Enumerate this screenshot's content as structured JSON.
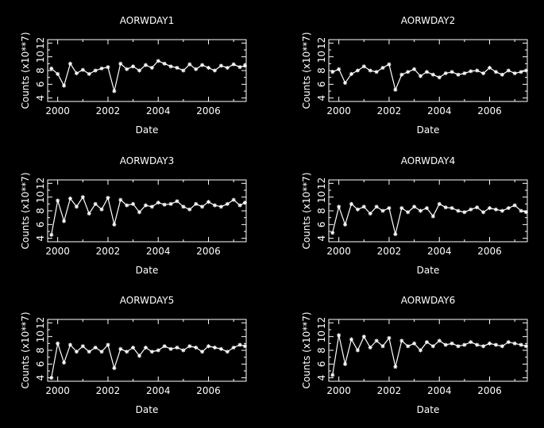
{
  "panels": [
    {
      "title": "AORWDAY1",
      "xlabel": "Date",
      "ylabel": "Counts (x10**7)",
      "xticks": [
        "2000",
        "2002",
        "2004",
        "2006"
      ],
      "yticks": [
        "4",
        "6",
        "8",
        "10",
        "12"
      ]
    },
    {
      "title": "AORWDAY2",
      "xlabel": "Date",
      "ylabel": "Counts (x10**7)",
      "xticks": [
        "2000",
        "2002",
        "2004",
        "2006"
      ],
      "yticks": [
        "4",
        "6",
        "8",
        "10",
        "12"
      ]
    },
    {
      "title": "AORWDAY3",
      "xlabel": "Date",
      "ylabel": "Counts (x10**7)",
      "xticks": [
        "2000",
        "2002",
        "2004",
        "2006"
      ],
      "yticks": [
        "4",
        "6",
        "8",
        "10",
        "12"
      ]
    },
    {
      "title": "AORWDAY4",
      "xlabel": "Date",
      "ylabel": "Counts (x10**7)",
      "xticks": [
        "2000",
        "2002",
        "2004",
        "2006"
      ],
      "yticks": [
        "4",
        "6",
        "8",
        "10",
        "12"
      ]
    },
    {
      "title": "AORWDAY5",
      "xlabel": "Date",
      "ylabel": "Counts (x10**7)",
      "xticks": [
        "2000",
        "2002",
        "2004",
        "2006"
      ],
      "yticks": [
        "4",
        "6",
        "8",
        "10",
        "12"
      ]
    },
    {
      "title": "AORWDAY6",
      "xlabel": "Date",
      "ylabel": "Counts (x10**7)",
      "xticks": [
        "2000",
        "2002",
        "2004",
        "2006"
      ],
      "yticks": [
        "4",
        "6",
        "8",
        "10",
        "12"
      ]
    }
  ],
  "colors": {
    "background": "#000000",
    "foreground": "#ffffff"
  },
  "chart_data": [
    {
      "type": "line",
      "title": "AORWDAY1",
      "xlabel": "Date",
      "ylabel": "Counts (x10**7)",
      "xlim": [
        1999.6,
        2007.5
      ],
      "ylim": [
        3.5,
        12.5
      ],
      "grid": false,
      "marker": "asterisk",
      "series": [
        {
          "x": [
            1999.75,
            2000.0,
            2000.25,
            2000.5,
            2000.75,
            2001.0,
            2001.25,
            2001.5,
            2001.75,
            2002.0,
            2002.25,
            2002.5,
            2002.75,
            2003.0,
            2003.25,
            2003.5,
            2003.75,
            2004.0,
            2004.25,
            2004.5,
            2004.75,
            2005.0,
            2005.25,
            2005.5,
            2005.75,
            2006.0,
            2006.25,
            2006.5,
            2006.75,
            2007.0,
            2007.25,
            2007.45
          ],
          "y": [
            8.3,
            7.5,
            5.8,
            9.0,
            7.6,
            8.1,
            7.5,
            8.0,
            8.3,
            8.5,
            5.0,
            9.0,
            8.2,
            8.6,
            8.0,
            8.8,
            8.4,
            9.4,
            9.0,
            8.6,
            8.4,
            8.0,
            8.9,
            8.2,
            8.8,
            8.4,
            8.0,
            8.7,
            8.4,
            8.9,
            8.5,
            8.7
          ]
        }
      ]
    },
    {
      "type": "line",
      "title": "AORWDAY2",
      "xlabel": "Date",
      "ylabel": "Counts (x10**7)",
      "xlim": [
        1999.6,
        2007.5
      ],
      "ylim": [
        3.5,
        12.5
      ],
      "grid": false,
      "marker": "asterisk",
      "series": [
        {
          "x": [
            1999.75,
            2000.0,
            2000.25,
            2000.5,
            2000.75,
            2001.0,
            2001.25,
            2001.5,
            2001.75,
            2002.0,
            2002.25,
            2002.5,
            2002.75,
            2003.0,
            2003.25,
            2003.5,
            2003.75,
            2004.0,
            2004.25,
            2004.5,
            2004.75,
            2005.0,
            2005.25,
            2005.5,
            2005.75,
            2006.0,
            2006.25,
            2006.5,
            2006.75,
            2007.0,
            2007.25,
            2007.45
          ],
          "y": [
            7.8,
            8.2,
            6.2,
            7.5,
            8.0,
            8.6,
            8.0,
            7.8,
            8.4,
            8.9,
            5.2,
            7.4,
            7.8,
            8.2,
            7.2,
            7.8,
            7.4,
            7.0,
            7.6,
            7.8,
            7.4,
            7.6,
            7.9,
            8.0,
            7.6,
            8.4,
            7.8,
            7.4,
            8.0,
            7.6,
            7.8,
            8.0
          ]
        }
      ]
    },
    {
      "type": "line",
      "title": "AORWDAY3",
      "xlabel": "Date",
      "ylabel": "Counts (x10**7)",
      "xlim": [
        1999.6,
        2007.5
      ],
      "ylim": [
        3.5,
        12.5
      ],
      "grid": false,
      "marker": "asterisk",
      "series": [
        {
          "x": [
            1999.75,
            2000.0,
            2000.25,
            2000.5,
            2000.75,
            2001.0,
            2001.25,
            2001.5,
            2001.75,
            2002.0,
            2002.25,
            2002.5,
            2002.75,
            2003.0,
            2003.25,
            2003.5,
            2003.75,
            2004.0,
            2004.25,
            2004.5,
            2004.75,
            2005.0,
            2005.25,
            2005.5,
            2005.75,
            2006.0,
            2006.25,
            2006.5,
            2006.75,
            2007.0,
            2007.25,
            2007.45
          ],
          "y": [
            4.5,
            9.5,
            6.5,
            9.8,
            8.6,
            10.0,
            7.6,
            9.0,
            8.2,
            9.9,
            6.0,
            9.6,
            8.8,
            9.0,
            7.8,
            8.8,
            8.6,
            9.2,
            8.9,
            9.0,
            9.4,
            8.6,
            8.2,
            9.0,
            8.6,
            9.3,
            8.8,
            8.6,
            9.0,
            9.6,
            8.8,
            9.2
          ]
        }
      ]
    },
    {
      "type": "line",
      "title": "AORWDAY4",
      "xlabel": "Date",
      "ylabel": "Counts (x10**7)",
      "xlim": [
        1999.6,
        2007.5
      ],
      "ylim": [
        3.5,
        12.5
      ],
      "grid": false,
      "marker": "asterisk",
      "series": [
        {
          "x": [
            1999.75,
            2000.0,
            2000.25,
            2000.5,
            2000.75,
            2001.0,
            2001.25,
            2001.5,
            2001.75,
            2002.0,
            2002.25,
            2002.5,
            2002.75,
            2003.0,
            2003.25,
            2003.5,
            2003.75,
            2004.0,
            2004.25,
            2004.5,
            2004.75,
            2005.0,
            2005.25,
            2005.5,
            2005.75,
            2006.0,
            2006.25,
            2006.5,
            2006.75,
            2007.0,
            2007.25,
            2007.45
          ],
          "y": [
            4.8,
            8.6,
            6.0,
            9.0,
            8.2,
            8.6,
            7.6,
            8.6,
            8.0,
            8.4,
            4.6,
            8.4,
            7.8,
            8.6,
            8.0,
            8.4,
            7.2,
            9.0,
            8.5,
            8.4,
            8.0,
            7.8,
            8.2,
            8.5,
            7.8,
            8.4,
            8.2,
            8.0,
            8.4,
            8.8,
            8.0,
            7.8
          ]
        }
      ]
    },
    {
      "type": "line",
      "title": "AORWDAY5",
      "xlabel": "Date",
      "ylabel": "Counts (x10**7)",
      "xlim": [
        1999.6,
        2007.5
      ],
      "ylim": [
        3.5,
        12.5
      ],
      "grid": false,
      "marker": "asterisk",
      "series": [
        {
          "x": [
            1999.75,
            2000.0,
            2000.25,
            2000.5,
            2000.75,
            2001.0,
            2001.25,
            2001.5,
            2001.75,
            2002.0,
            2002.25,
            2002.5,
            2002.75,
            2003.0,
            2003.25,
            2003.5,
            2003.75,
            2004.0,
            2004.25,
            2004.5,
            2004.75,
            2005.0,
            2005.25,
            2005.5,
            2005.75,
            2006.0,
            2006.25,
            2006.5,
            2006.75,
            2007.0,
            2007.25,
            2007.45
          ],
          "y": [
            4.0,
            9.0,
            6.2,
            8.8,
            7.8,
            8.6,
            7.8,
            8.4,
            7.8,
            8.8,
            5.4,
            8.2,
            7.8,
            8.4,
            7.2,
            8.4,
            7.8,
            8.0,
            8.6,
            8.2,
            8.4,
            8.0,
            8.6,
            8.4,
            7.8,
            8.6,
            8.4,
            8.2,
            7.8,
            8.4,
            8.8,
            8.6
          ]
        }
      ]
    },
    {
      "type": "line",
      "title": "AORWDAY6",
      "xlabel": "Date",
      "ylabel": "Counts (x10**7)",
      "xlim": [
        1999.6,
        2007.5
      ],
      "ylim": [
        3.5,
        12.5
      ],
      "grid": false,
      "marker": "asterisk",
      "series": [
        {
          "x": [
            1999.75,
            2000.0,
            2000.25,
            2000.5,
            2000.75,
            2001.0,
            2001.25,
            2001.5,
            2001.75,
            2002.0,
            2002.25,
            2002.5,
            2002.75,
            2003.0,
            2003.25,
            2003.5,
            2003.75,
            2004.0,
            2004.25,
            2004.5,
            2004.75,
            2005.0,
            2005.25,
            2005.5,
            2005.75,
            2006.0,
            2006.25,
            2006.5,
            2006.75,
            2007.0,
            2007.25,
            2007.45
          ],
          "y": [
            4.4,
            10.2,
            6.0,
            9.6,
            8.0,
            10.0,
            8.4,
            9.4,
            8.6,
            9.8,
            5.6,
            9.4,
            8.6,
            9.0,
            8.0,
            9.2,
            8.6,
            9.4,
            8.8,
            9.0,
            8.6,
            8.8,
            9.2,
            8.8,
            8.6,
            9.0,
            8.8,
            8.6,
            9.2,
            9.0,
            8.8,
            8.6
          ]
        }
      ]
    }
  ]
}
